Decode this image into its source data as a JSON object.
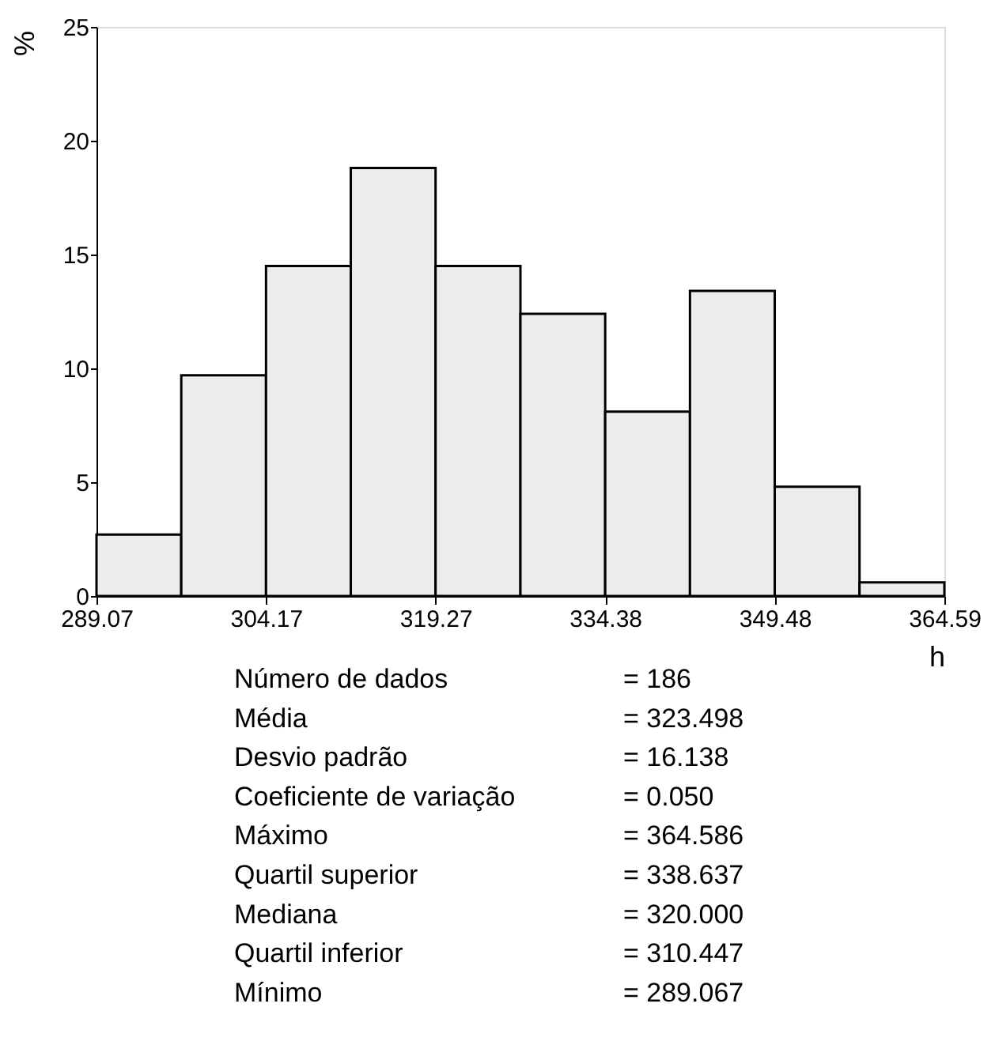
{
  "chart_data": {
    "type": "histogram",
    "xlabel": "h",
    "ylabel": "%",
    "bins": [
      289.07,
      296.62,
      304.17,
      311.72,
      319.27,
      326.83,
      334.38,
      341.93,
      349.48,
      357.03,
      364.59
    ],
    "values": [
      2.7,
      9.7,
      14.5,
      18.8,
      14.5,
      12.4,
      8.1,
      13.4,
      4.8,
      0.6
    ],
    "color": "#ececec",
    "xlim": [
      289.07,
      364.59
    ],
    "xticks": [
      289.07,
      304.17,
      319.27,
      334.38,
      349.48,
      364.59
    ],
    "ylim": [
      0,
      25
    ],
    "yticks": [
      0,
      5,
      10,
      15,
      20,
      25
    ],
    "grid": false,
    "annotations": [
      "Número de dados = 186",
      "Média = 323.498",
      "Desvio padrão = 16.138",
      "Coeficiente de variação = 0.050",
      "Máximo = 364.586",
      "Quartil superior = 338.637",
      "Mediana = 320.000",
      "Quartil inferior = 310.447",
      "Mínimo = 289.067"
    ]
  }
}
